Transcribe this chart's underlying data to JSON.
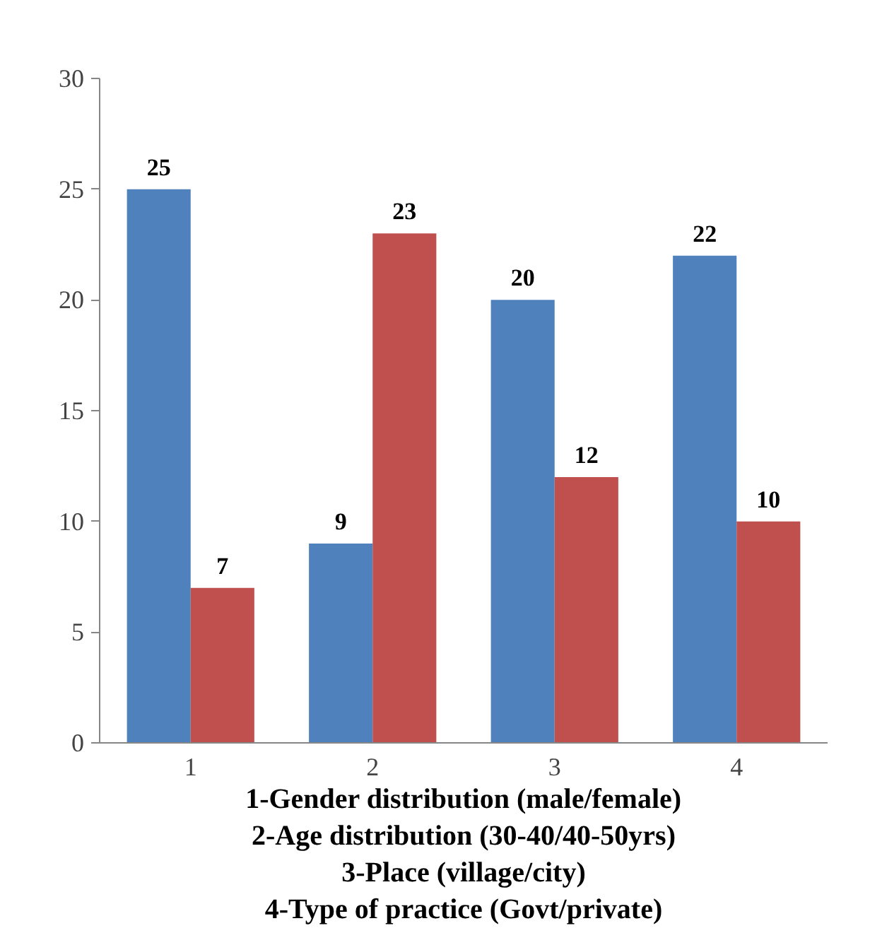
{
  "chart_data": {
    "type": "bar",
    "categories": [
      "1",
      "2",
      "3",
      "4"
    ],
    "series": [
      {
        "color": "#4f81bd",
        "values": [
          25,
          9,
          20,
          22
        ]
      },
      {
        "color": "#c0504d",
        "values": [
          7,
          23,
          12,
          10
        ]
      }
    ],
    "ylim": [
      0,
      30
    ],
    "yticks": [
      0,
      5,
      10,
      15,
      20,
      25,
      30
    ],
    "grid": false,
    "data_labels": true,
    "annotations": [
      "1-Gender distribution (male/female)",
      "2-Age distribution (30-40/40-50yrs)",
      "3-Place (village/city)",
      "4-Type of practice (Govt/private)"
    ]
  }
}
